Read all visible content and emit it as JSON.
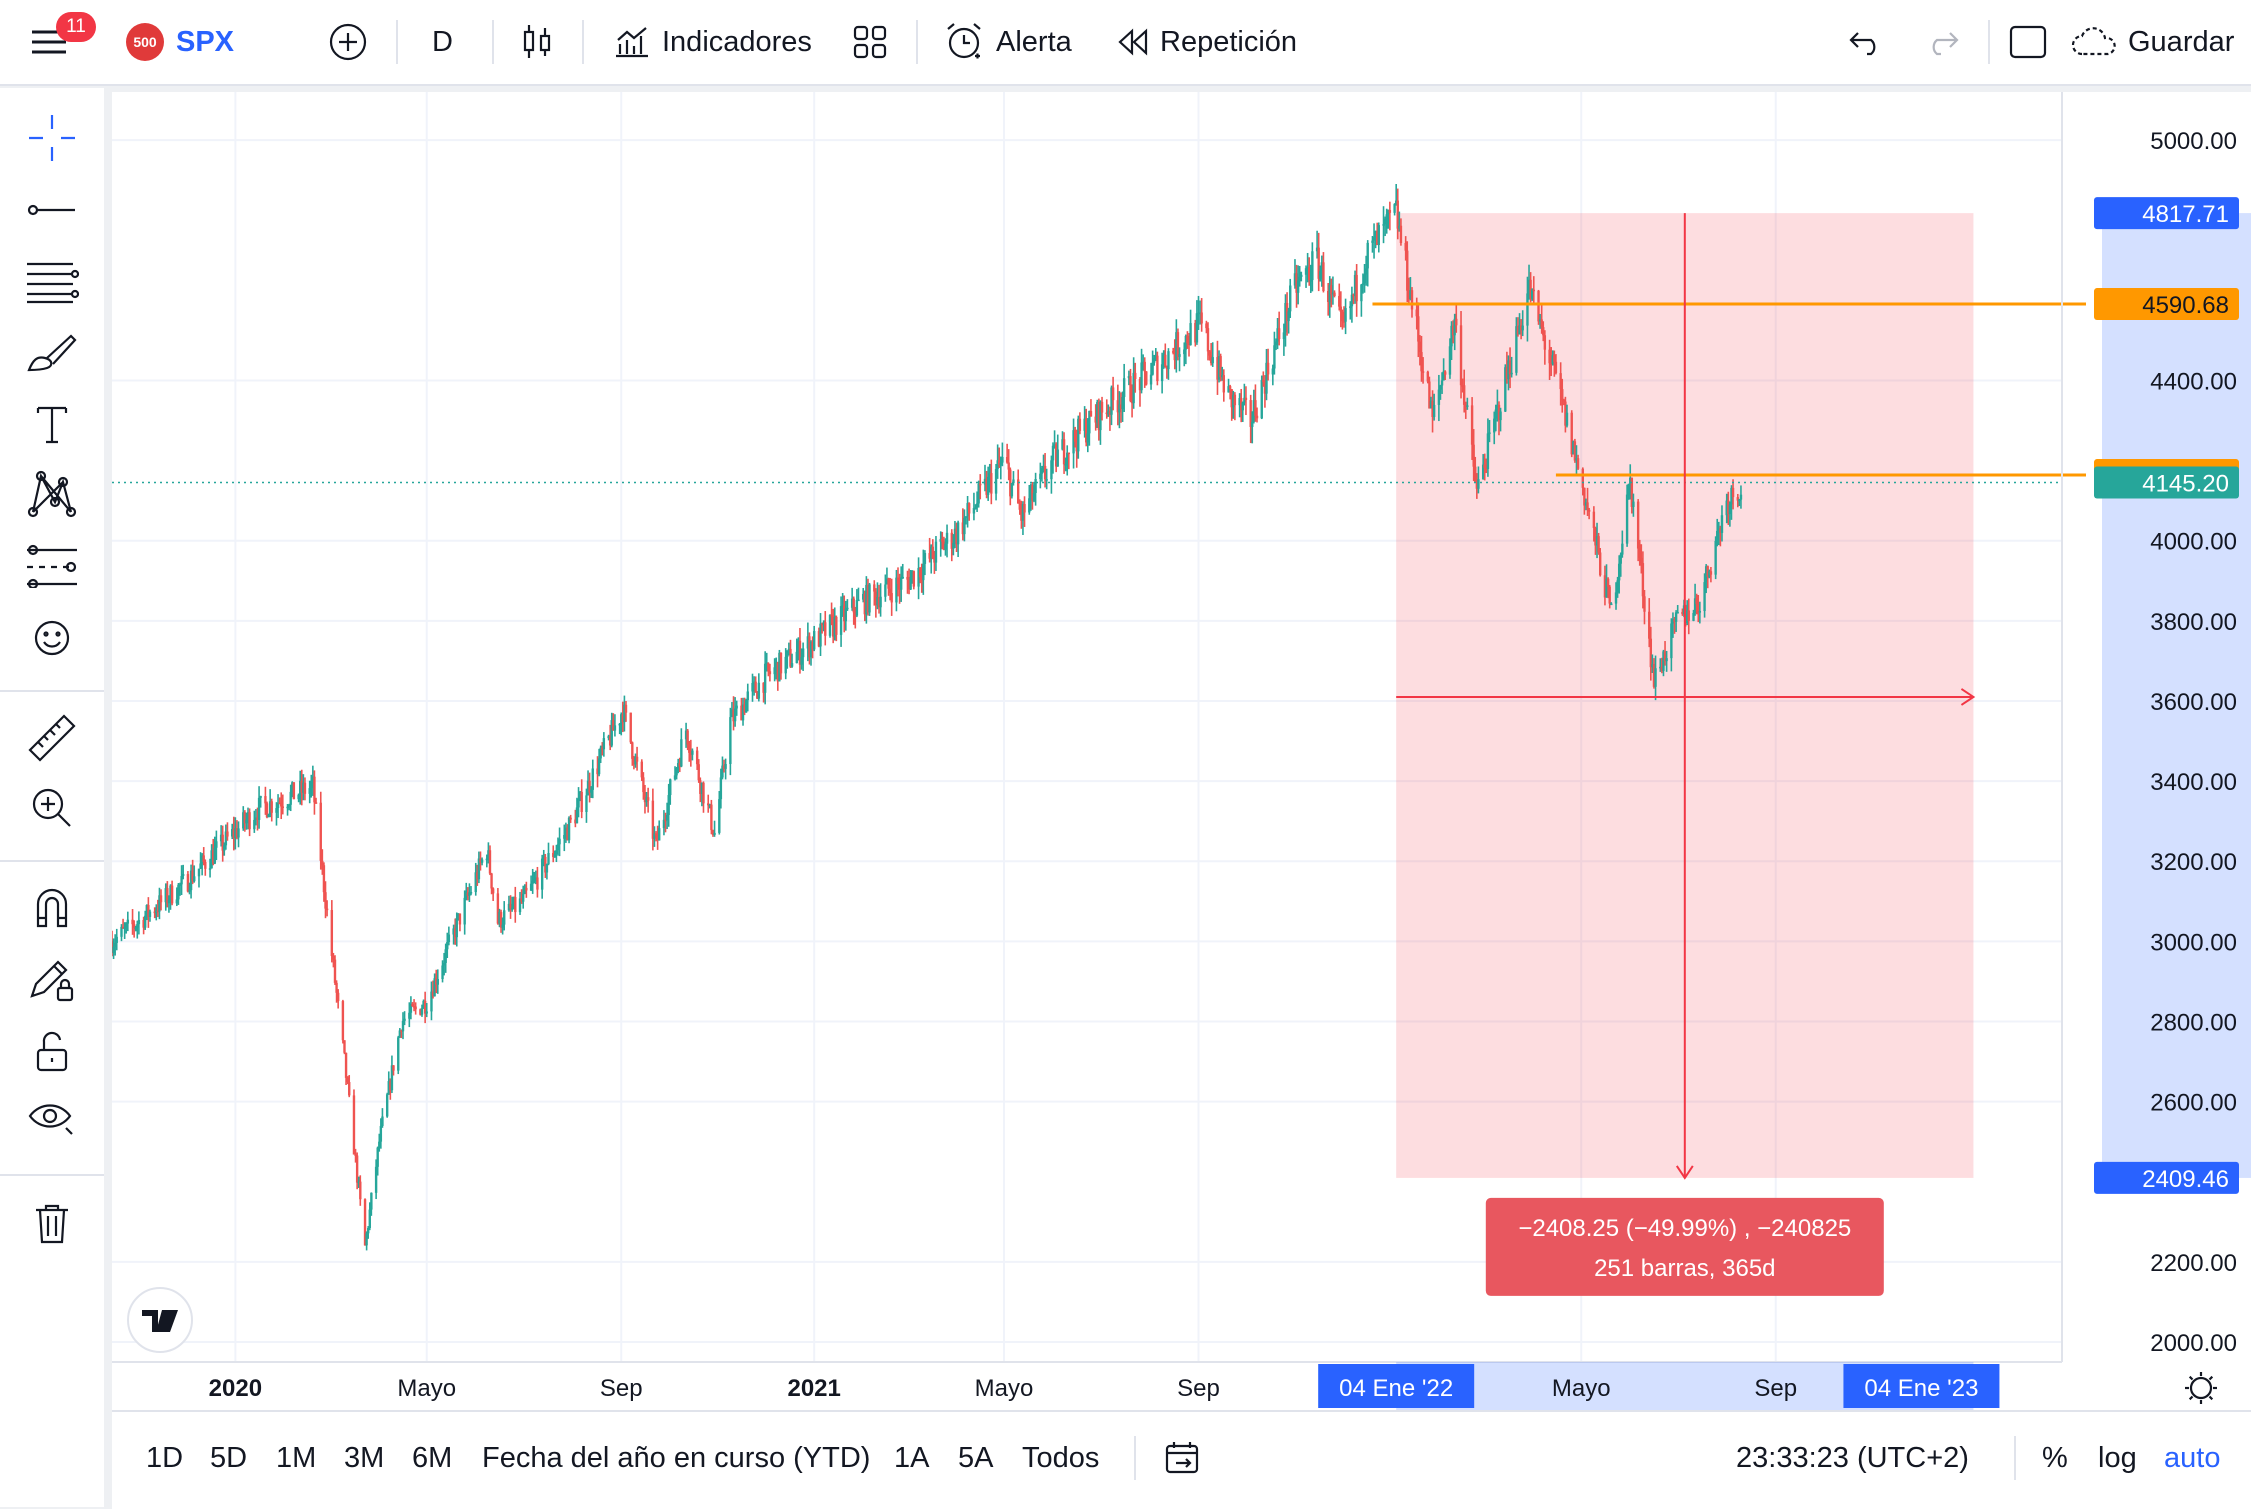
{
  "header": {
    "notifications": "11",
    "symbol_logo": "500",
    "symbol": "SPX",
    "interval": "D",
    "indicators_label": "Indicadores",
    "alert_label": "Alerta",
    "replay_label": "Repetición",
    "save_label": "Guardar"
  },
  "toolbar_icons": [
    "menu-icon",
    "plus-circle-icon",
    "candles-icon",
    "indicators-icon",
    "layout-grid-icon",
    "alarm-clock-icon",
    "replay-icon",
    "undo-icon",
    "redo-icon",
    "fullscreen-icon",
    "cloud-icon"
  ],
  "left_tools": [
    "crosshair-icon",
    "trend-line-icon",
    "fib-lines-icon",
    "brush-icon",
    "text-icon",
    "pattern-icon",
    "forecast-icon",
    "emoji-icon",
    "ruler-icon",
    "zoom-in-icon",
    "magnet-icon",
    "lock-pencil-icon",
    "lock-icon",
    "eye-icon",
    "trash-icon"
  ],
  "chart_data": {
    "type": "candlestick",
    "symbol": "SPX",
    "x_ticks": [
      {
        "label": "2020",
        "date": "2020-01-01",
        "bold": true
      },
      {
        "label": "Mayo",
        "date": "2020-05-01"
      },
      {
        "label": "Sep",
        "date": "2020-09-01"
      },
      {
        "label": "2021",
        "date": "2021-01-01",
        "bold": true
      },
      {
        "label": "Mayo",
        "date": "2021-05-01"
      },
      {
        "label": "Sep",
        "date": "2021-09-01"
      },
      {
        "label": "Mayo",
        "date": "2022-05-01"
      },
      {
        "label": "Sep",
        "date": "2022-09-01"
      }
    ],
    "x_range": [
      "2019-10-15",
      "2023-03-01"
    ],
    "y_ticks": [
      5000,
      4400,
      4000,
      3800,
      3600,
      3400,
      3200,
      3000,
      2800,
      2600,
      2200,
      2000
    ],
    "y_tick_labels": [
      "5000.00",
      "4400.00",
      "4000.00",
      "3800.00",
      "3600.00",
      "3400.00",
      "3200.00",
      "3000.00",
      "2800.00",
      "2600.00",
      "2200.00",
      "2000.00"
    ],
    "ylim": [
      1950,
      5120
    ],
    "price_series": [
      [
        "2019-10-15",
        3000
      ],
      [
        "2019-11-01",
        3050
      ],
      [
        "2019-12-01",
        3150
      ],
      [
        "2020-01-15",
        3330
      ],
      [
        "2020-02-19",
        3386
      ],
      [
        "2020-03-01",
        3000
      ],
      [
        "2020-03-10",
        2700
      ],
      [
        "2020-03-23",
        2237
      ],
      [
        "2020-04-01",
        2500
      ],
      [
        "2020-04-15",
        2800
      ],
      [
        "2020-05-01",
        2850
      ],
      [
        "2020-06-08",
        3230
      ],
      [
        "2020-06-15",
        3050
      ],
      [
        "2020-07-01",
        3100
      ],
      [
        "2020-08-01",
        3300
      ],
      [
        "2020-09-02",
        3580
      ],
      [
        "2020-09-23",
        3240
      ],
      [
        "2020-10-12",
        3530
      ],
      [
        "2020-10-30",
        3270
      ],
      [
        "2020-11-09",
        3550
      ],
      [
        "2020-12-01",
        3660
      ],
      [
        "2021-01-01",
        3750
      ],
      [
        "2021-02-01",
        3850
      ],
      [
        "2021-03-01",
        3900
      ],
      [
        "2021-04-01",
        4020
      ],
      [
        "2021-05-01",
        4200
      ],
      [
        "2021-05-12",
        4060
      ],
      [
        "2021-06-01",
        4200
      ],
      [
        "2021-07-01",
        4320
      ],
      [
        "2021-08-01",
        4420
      ],
      [
        "2021-09-02",
        4540
      ],
      [
        "2021-09-20",
        4360
      ],
      [
        "2021-10-04",
        4300
      ],
      [
        "2021-11-01",
        4630
      ],
      [
        "2021-11-15",
        4700
      ],
      [
        "2021-12-01",
        4520
      ],
      [
        "2021-12-15",
        4700
      ],
      [
        "2022-01-04",
        4817
      ],
      [
        "2022-01-27",
        4300
      ],
      [
        "2022-02-10",
        4550
      ],
      [
        "2022-02-24",
        4120
      ],
      [
        "2022-03-29",
        4630
      ],
      [
        "2022-04-15",
        4400
      ],
      [
        "2022-05-01",
        4150
      ],
      [
        "2022-05-20",
        3820
      ],
      [
        "2022-06-01",
        4150
      ],
      [
        "2022-06-16",
        3650
      ],
      [
        "2022-07-01",
        3800
      ],
      [
        "2022-07-15",
        3850
      ],
      [
        "2022-08-01",
        4100
      ],
      [
        "2022-08-10",
        4140
      ]
    ],
    "current_price": "4145.20",
    "horizontal_lines": [
      {
        "label": "4590.68",
        "value": 4590.68,
        "color": "#ff9800"
      },
      {
        "label": "4163.86",
        "value": 4163.86,
        "color": "#ff9800"
      }
    ],
    "measure": {
      "start_date": "2022-01-04",
      "end_date": "2023-01-04",
      "top": 4817.71,
      "bottom": 2409.46,
      "top_label": "4817.71",
      "bottom_label": "2409.46",
      "start_label": "04 Ene '22",
      "end_label": "04 Ene '23",
      "result_line1": "−2408.25 (−49.99%) , −240825",
      "result_line2": "251 barras, 365d",
      "color": "#f23645"
    }
  },
  "bottom": {
    "ranges": [
      "1D",
      "5D",
      "1M",
      "3M",
      "6M",
      "Fecha del año en curso (YTD)",
      "1A",
      "5A",
      "Todos"
    ],
    "clock": "23:33:23 (UTC+2)",
    "percent": "%",
    "log": "log",
    "auto": "auto"
  },
  "colors": {
    "up": "#26a69a",
    "down": "#ef5350",
    "accent": "#2962ff",
    "orange": "#ff9800"
  }
}
